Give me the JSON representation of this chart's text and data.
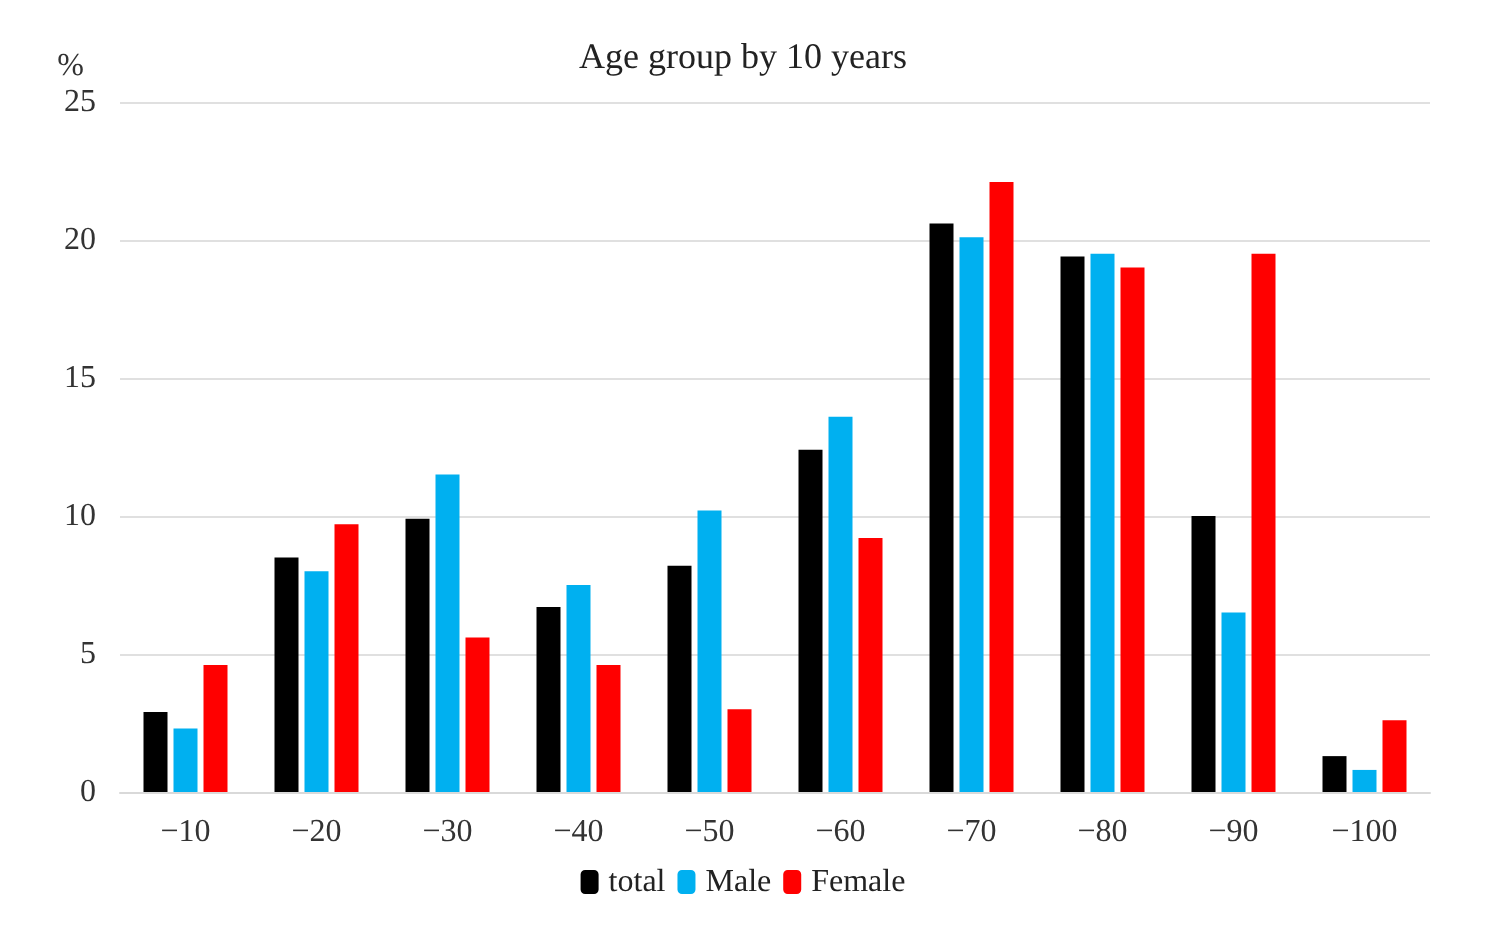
{
  "chart_data": {
    "type": "bar",
    "title": "Age group by 10 years",
    "ylabel": "%",
    "categories": [
      "−10",
      "−20",
      "−30",
      "−40",
      "−50",
      "−60",
      "−70",
      "−80",
      "−90",
      "−100"
    ],
    "series": [
      {
        "name": "total",
        "color": "#000000",
        "values": [
          2.9,
          8.5,
          9.9,
          6.7,
          8.2,
          12.4,
          20.6,
          19.4,
          10.0,
          1.3
        ]
      },
      {
        "name": "Male",
        "color": "#00b0f0",
        "values": [
          2.3,
          8.0,
          11.5,
          7.5,
          10.2,
          13.6,
          20.1,
          19.5,
          6.5,
          0.8
        ]
      },
      {
        "name": "Female",
        "color": "#ff0000",
        "values": [
          4.6,
          9.7,
          5.6,
          4.6,
          3.0,
          9.2,
          22.1,
          19.0,
          19.5,
          2.6
        ]
      }
    ],
    "ylim": [
      0,
      25
    ],
    "yticks": [
      0,
      5,
      10,
      15,
      20,
      25
    ],
    "grid": "y",
    "legend": "bottom"
  }
}
